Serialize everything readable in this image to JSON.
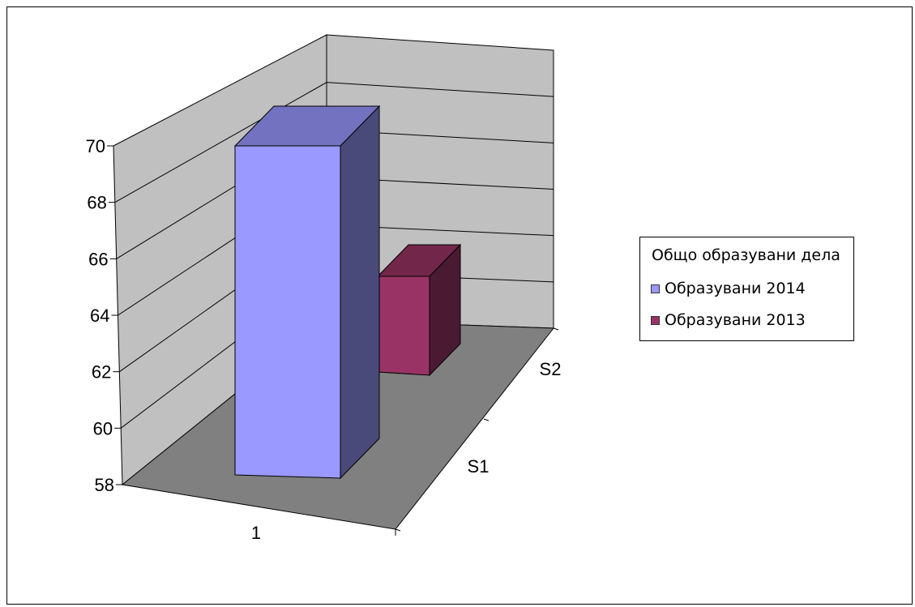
{
  "chart_data": {
    "type": "bar",
    "subtype": "3d-column",
    "categories": [
      "1"
    ],
    "depth_categories": [
      "S1",
      "S2"
    ],
    "series": [
      {
        "name": "Образувани 2014",
        "values": [
          70.3
        ],
        "color": "#9999ff"
      },
      {
        "name": "Образувани 2013",
        "values": [
          63.8
        ],
        "color": "#993366"
      }
    ],
    "ylim": [
      58,
      70
    ],
    "yticks": [
      "58",
      "60",
      "62",
      "64",
      "66",
      "68",
      "70"
    ],
    "legend_title": "Общо образувани дела",
    "legend_position": "right",
    "grid": true,
    "wall_color": "#c0c0c0",
    "floor_color": "#808080"
  }
}
